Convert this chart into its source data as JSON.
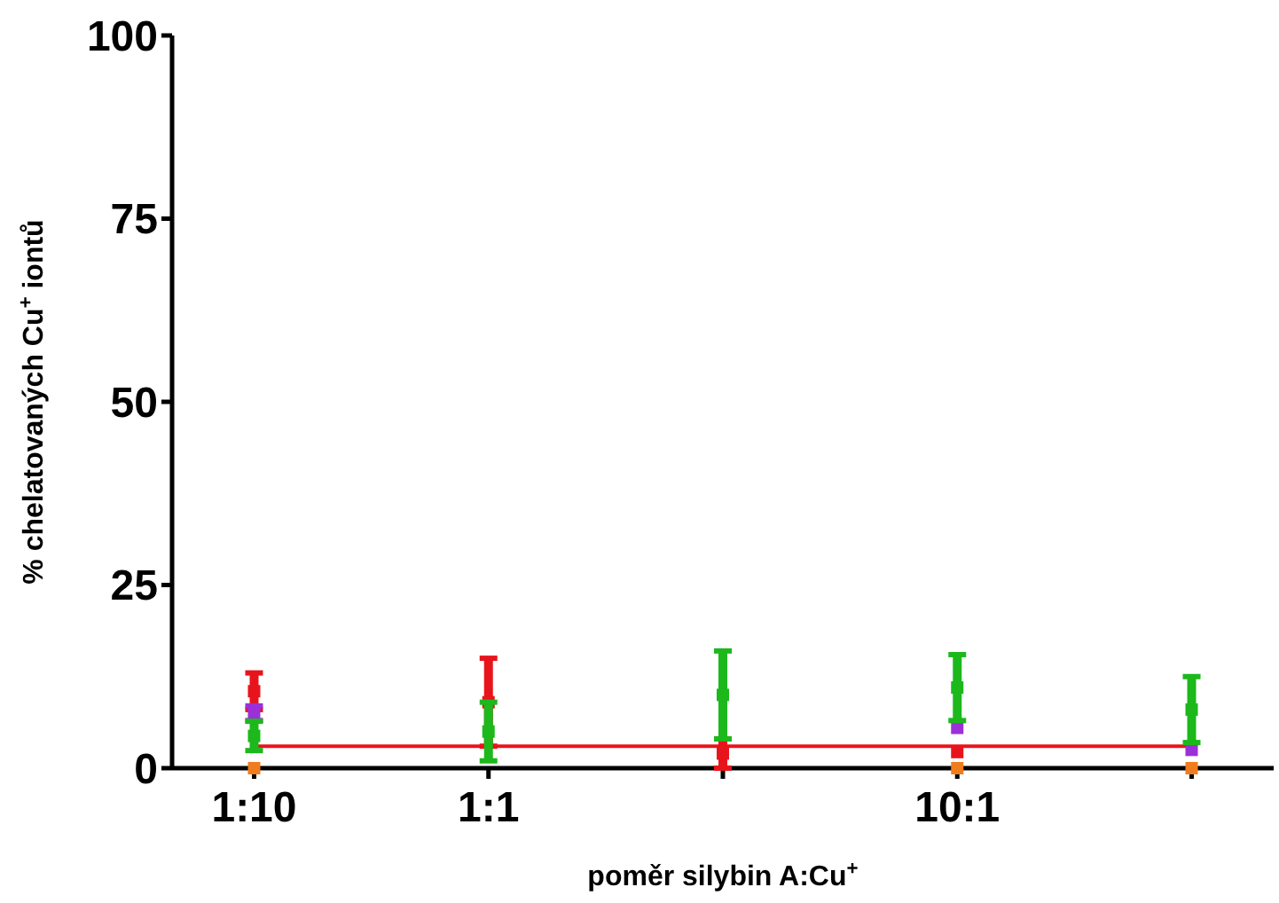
{
  "chart_data": {
    "type": "scatter",
    "xlabel": "poměr silybin A:Cu$^{+}$",
    "ylabel": "% chelatovaných Cu$^{+}$ iontů",
    "ylim": [
      0,
      100
    ],
    "yticks": [
      0,
      25,
      50,
      75,
      100
    ],
    "grid": false,
    "marker": "square",
    "categories": [
      "1:10",
      "1:1",
      null,
      "10:1",
      null
    ],
    "series": [
      {
        "color": "#e8141c",
        "values": [
          10.5,
          9,
          2,
          2.2,
          null
        ],
        "errors": [
          2.5,
          6,
          2,
          null,
          null
        ]
      },
      {
        "color": "#9b30d8",
        "values": [
          7.5,
          null,
          null,
          5.5,
          2.5
        ],
        "errors": [
          1,
          null,
          null,
          null,
          null
        ]
      },
      {
        "color": "#1cb81c",
        "values": [
          4.4,
          5,
          10,
          11,
          8
        ],
        "errors": [
          2,
          4,
          6,
          4.5,
          4.5
        ]
      },
      {
        "color": "#f07c20",
        "values": [
          0,
          null,
          null,
          0,
          0
        ]
      },
      {
        "type": "line",
        "color": "#e8141c",
        "values": [
          3,
          3,
          3,
          3,
          3
        ],
        "marker": "none"
      }
    ]
  }
}
